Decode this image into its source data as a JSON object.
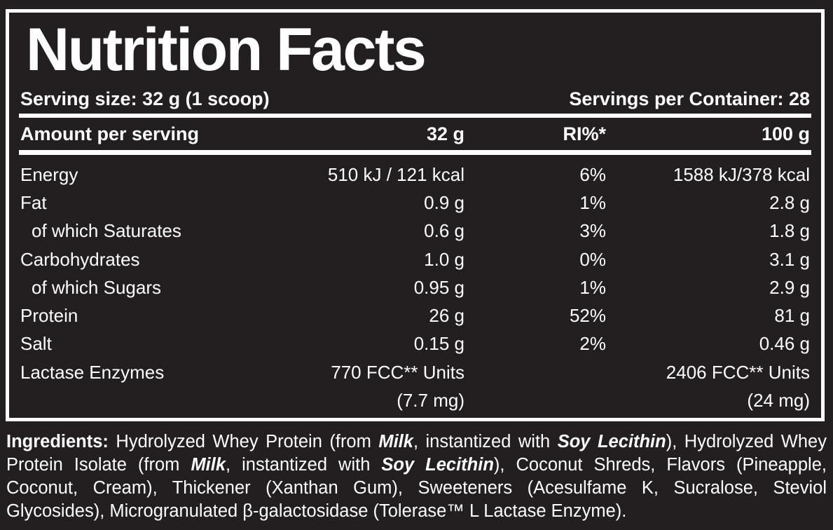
{
  "colors": {
    "background": "#231f20",
    "text": "#ffffff",
    "rule": "#ffffff"
  },
  "label": {
    "title": "Nutrition Facts",
    "serving_size": "Serving size: 32 g (1 scoop)",
    "servings_per_container": "Servings per Container: 28",
    "table": {
      "headers": [
        "Amount per serving",
        "32 g",
        "RI%*",
        "100 g"
      ],
      "rows": [
        {
          "name": "Energy",
          "indent": false,
          "per_serving": "510 kJ / 121 kcal",
          "ri_percent": "6%",
          "per_100g": "1588 kJ/378 kcal"
        },
        {
          "name": "Fat",
          "indent": false,
          "per_serving": "0.9 g",
          "ri_percent": "1%",
          "per_100g": "2.8 g"
        },
        {
          "name": "of which Saturates",
          "indent": true,
          "per_serving": "0.6 g",
          "ri_percent": "3%",
          "per_100g": "1.8 g"
        },
        {
          "name": "Carbohydrates",
          "indent": false,
          "per_serving": "1.0 g",
          "ri_percent": "0%",
          "per_100g": "3.1 g"
        },
        {
          "name": "of which Sugars",
          "indent": true,
          "per_serving": "0.95 g",
          "ri_percent": "1%",
          "per_100g": "2.9 g"
        },
        {
          "name": "Protein",
          "indent": false,
          "per_serving": "26 g",
          "ri_percent": "52%",
          "per_100g": "81 g"
        },
        {
          "name": "Salt",
          "indent": false,
          "per_serving": "0.15 g",
          "ri_percent": "2%",
          "per_100g": "0.46 g"
        },
        {
          "name": "Lactase Enzymes",
          "indent": false,
          "per_serving": "770 FCC** Units",
          "ri_percent": "",
          "per_100g": "2406 FCC** Units"
        },
        {
          "name": "",
          "indent": false,
          "per_serving": "(7.7 mg)",
          "ri_percent": "",
          "per_100g": "(24 mg)"
        }
      ]
    },
    "ingredients": {
      "segments": [
        {
          "text": "Ingredients: ",
          "style": "bold"
        },
        {
          "text": "Hydrolyzed Whey Protein (from ",
          "style": "normal"
        },
        {
          "text": "Milk",
          "style": "bold-italic"
        },
        {
          "text": ", instantized with ",
          "style": "normal"
        },
        {
          "text": "Soy Lecithin",
          "style": "bold-italic"
        },
        {
          "text": "), Hydrolyzed Whey Protein Isolate (from ",
          "style": "normal"
        },
        {
          "text": "Milk",
          "style": "bold-italic"
        },
        {
          "text": ", instantized with ",
          "style": "normal"
        },
        {
          "text": "Soy Lecithin",
          "style": "bold-italic"
        },
        {
          "text": "), Coconut Shreds, Flavors (Pineapple, Coconut, Cream), Thickener (Xanthan Gum), Sweeteners (Acesulfame K, Sucralose, Steviol Glycosides), Microgranulated β-galactosidase (Tolerase™ L Lactase Enzyme).",
          "style": "normal"
        }
      ]
    }
  }
}
